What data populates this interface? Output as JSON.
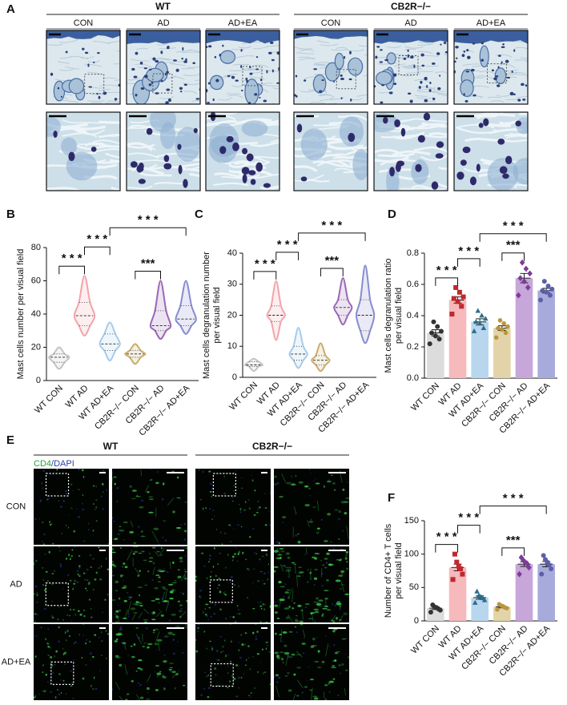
{
  "panel_a": {
    "label": "A",
    "groups": [
      {
        "name": "WT",
        "columns": [
          "CON",
          "AD",
          "AD+EA"
        ]
      },
      {
        "name": "CB2R−/−",
        "columns": [
          "CON",
          "AD",
          "AD+EA"
        ]
      }
    ]
  },
  "panel_e": {
    "label": "E",
    "stain": [
      "CD4",
      "/DAPI"
    ],
    "groups": [
      "WT",
      "CB2R−/−"
    ],
    "rows": [
      "CON",
      "AD",
      "AD+EA"
    ]
  },
  "chart_data": [
    {
      "type": "violin",
      "label": "B",
      "ylabel": [
        "Mast cells number per visual field"
      ],
      "categories": [
        "WT CON",
        "WT AD",
        "WT AD+EA",
        "CB2R−/− CON",
        "CB2R−/− AD",
        "CB2R−/− AD+EA"
      ],
      "colors": [
        "#c4c4c4",
        "#f2a3ab",
        "#a6cbea",
        "#c9ad6a",
        "#9a68b6",
        "#878ccf"
      ],
      "stats": [
        {
          "min": 7,
          "q1": 11,
          "median": 14,
          "q3": 16,
          "max": 20
        },
        {
          "min": 27,
          "q1": 33,
          "median": 39,
          "q3": 47,
          "max": 63
        },
        {
          "min": 12,
          "q1": 18,
          "median": 22,
          "q3": 28,
          "max": 35
        },
        {
          "min": 10,
          "q1": 14,
          "median": 16,
          "q3": 18,
          "max": 22
        },
        {
          "min": 25,
          "q1": 30,
          "median": 33,
          "q3": 42,
          "max": 60
        },
        {
          "min": 28,
          "q1": 33,
          "median": 37,
          "q3": 45,
          "max": 60
        }
      ],
      "ylim": [
        0,
        80
      ],
      "yticks": [
        0,
        20,
        40,
        60,
        80
      ],
      "significance": [
        {
          "pair": [
            0,
            1
          ],
          "label": "* * *"
        },
        {
          "pair": [
            1,
            2
          ],
          "label": "* * *"
        },
        {
          "pair": [
            3,
            4
          ],
          "label": "***"
        },
        {
          "pair": [
            2,
            5
          ],
          "label": "* * *"
        }
      ]
    },
    {
      "type": "violin",
      "label": "C",
      "ylabel": [
        "Mast cells degranulation number",
        "per visual field"
      ],
      "categories": [
        "WT CON",
        "WT AD",
        "WT AD+EA",
        "CB2R−/− CON",
        "CB2R−/− AD",
        "CB2R−/− AD+EA"
      ],
      "colors": [
        "#c4c4c4",
        "#f2a3ab",
        "#a6cbea",
        "#c9ad6a",
        "#9a68b6",
        "#878ccf"
      ],
      "stats": [
        {
          "min": 2,
          "q1": 3.5,
          "median": 4,
          "q3": 5,
          "max": 6
        },
        {
          "min": 12,
          "q1": 18,
          "median": 20,
          "q3": 23,
          "max": 31
        },
        {
          "min": 3,
          "q1": 5.5,
          "median": 7.5,
          "q3": 10,
          "max": 16
        },
        {
          "min": 2,
          "q1": 4,
          "median": 5.5,
          "q3": 7,
          "max": 11
        },
        {
          "min": 17,
          "q1": 20,
          "median": 22.5,
          "q3": 25,
          "max": 32
        },
        {
          "min": 11,
          "q1": 15,
          "median": 20,
          "q3": 25,
          "max": 36
        }
      ],
      "ylim": [
        0,
        40
      ],
      "yticks": [
        0,
        10,
        20,
        30,
        40
      ],
      "significance": [
        {
          "pair": [
            0,
            1
          ],
          "label": "* * *"
        },
        {
          "pair": [
            1,
            2
          ],
          "label": "* * *"
        },
        {
          "pair": [
            3,
            4
          ],
          "label": "***"
        },
        {
          "pair": [
            2,
            5
          ],
          "label": "* * *"
        }
      ]
    },
    {
      "type": "bar",
      "label": "D",
      "ylabel": [
        "Mast cells degranulation ratio",
        "per visual field"
      ],
      "categories": [
        "WT CON",
        "WT AD",
        "WT AD+EA",
        "CB2R−/− CON",
        "CB2R−/− AD",
        "CB2R−/− AD+EA"
      ],
      "values": [
        0.29,
        0.5,
        0.36,
        0.32,
        0.64,
        0.56
      ],
      "errors": [
        0.02,
        0.02,
        0.02,
        0.015,
        0.03,
        0.015
      ],
      "points": [
        [
          0.22,
          0.25,
          0.27,
          0.29,
          0.3,
          0.33,
          0.36
        ],
        [
          0.41,
          0.46,
          0.49,
          0.51,
          0.52,
          0.55,
          0.58
        ],
        [
          0.3,
          0.32,
          0.35,
          0.36,
          0.38,
          0.4,
          0.43
        ],
        [
          0.26,
          0.29,
          0.31,
          0.32,
          0.33,
          0.35,
          0.37
        ],
        [
          0.53,
          0.58,
          0.62,
          0.64,
          0.67,
          0.7,
          0.74
        ],
        [
          0.5,
          0.53,
          0.55,
          0.56,
          0.57,
          0.59,
          0.62
        ]
      ],
      "colors": [
        "#333333",
        "#c0282e",
        "#2a6f8a",
        "#b8963e",
        "#7d3c98",
        "#5c5fa8"
      ],
      "bar_colors": [
        "#dcdcdc",
        "#f6b9bc",
        "#b8d6ee",
        "#e2d4a8",
        "#c7a6da",
        "#a7abdc"
      ],
      "markers": [
        "circle",
        "square",
        "triangle",
        "hexagon",
        "diamond",
        "circle"
      ],
      "ylim": [
        0,
        0.8
      ],
      "yticks": [
        {
          "value": 0,
          "label": "0.0"
        },
        0.2,
        0.4,
        0.6,
        0.8
      ],
      "significance": [
        {
          "pair": [
            0,
            1
          ],
          "label": "* * *"
        },
        {
          "pair": [
            1,
            2
          ],
          "label": "* * *"
        },
        {
          "pair": [
            3,
            4
          ],
          "label": "***"
        },
        {
          "pair": [
            2,
            5
          ],
          "label": "* * *"
        }
      ]
    },
    {
      "type": "bar",
      "label": "F",
      "ylabel": [
        "Number of CD4+ T cells",
        "per visual field"
      ],
      "categories": [
        "WT CON",
        "WT AD",
        "WT AD+EA",
        "CB2R−/− CON",
        "CB2R−/− AD",
        "CB2R−/− AD+EA"
      ],
      "values": [
        19,
        80,
        35,
        21,
        85,
        85
      ],
      "errors": [
        2,
        5,
        2.5,
        1.5,
        3.5,
        4
      ],
      "points": [
        [
          13,
          16,
          18,
          20,
          21,
          24
        ],
        [
          62,
          70,
          78,
          82,
          88,
          100
        ],
        [
          27,
          31,
          34,
          36,
          38,
          44
        ],
        [
          17,
          19,
          20,
          22,
          23,
          25
        ],
        [
          70,
          80,
          86,
          88,
          91,
          95
        ],
        [
          70,
          78,
          84,
          88,
          92,
          98
        ]
      ],
      "colors": [
        "#333333",
        "#c0282e",
        "#2a6f8a",
        "#b8963e",
        "#7d3c98",
        "#5c5fa8"
      ],
      "bar_colors": [
        "#dcdcdc",
        "#f6b9bc",
        "#b8d6ee",
        "#e2d4a8",
        "#c7a6da",
        "#a7abdc"
      ],
      "markers": [
        "circle",
        "square",
        "triangle",
        "hexagon",
        "diamond",
        "circle"
      ],
      "ylim": [
        0,
        150
      ],
      "yticks": [
        0,
        50,
        100,
        150
      ],
      "significance": [
        {
          "pair": [
            0,
            1
          ],
          "label": "* * *"
        },
        {
          "pair": [
            1,
            2
          ],
          "label": "* * *"
        },
        {
          "pair": [
            3,
            4
          ],
          "label": "***"
        },
        {
          "pair": [
            2,
            5
          ],
          "label": "* * *"
        }
      ]
    }
  ]
}
